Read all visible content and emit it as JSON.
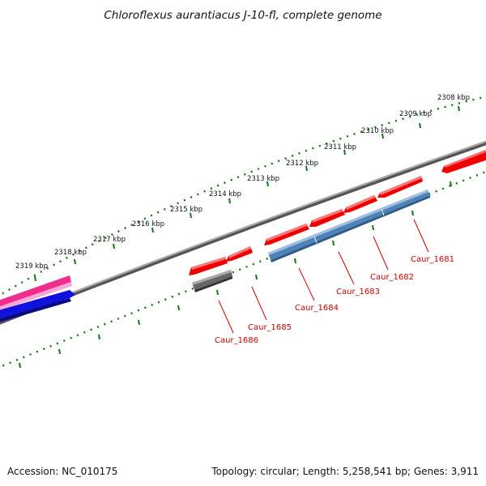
{
  "title": "Chloroflexus aurantiacus J-10-fl, complete genome",
  "footer": {
    "accession": "Accession: NC_010175",
    "topology": "Topology: circular; Length: 5,258,541 bp; Genes: 3,911"
  },
  "ruler": {
    "labels": [
      "2308 kbp",
      "2309 kbp",
      "2310 kbp",
      "2311 kbp",
      "2312 kbp",
      "2313 kbp",
      "2314 kbp",
      "2315 kbp",
      "2316 kbp",
      "2317 kbp",
      "2318 kbp",
      "2319 kbp"
    ]
  },
  "genes": {
    "labels": [
      "Caur_1681",
      "Caur_1682",
      "Caur_1683",
      "Caur_1684",
      "Caur_1685",
      "Caur_1686"
    ]
  },
  "colors": {
    "forward_gene": "#ee0000",
    "cds_feature": "#4f83b8",
    "pseudo_gene": "#666666",
    "magenta_feature": "#ee2d8f",
    "blue_feature": "#1111dd",
    "backbone": "#888888",
    "tick": "#117711",
    "label": "#cc0000"
  }
}
